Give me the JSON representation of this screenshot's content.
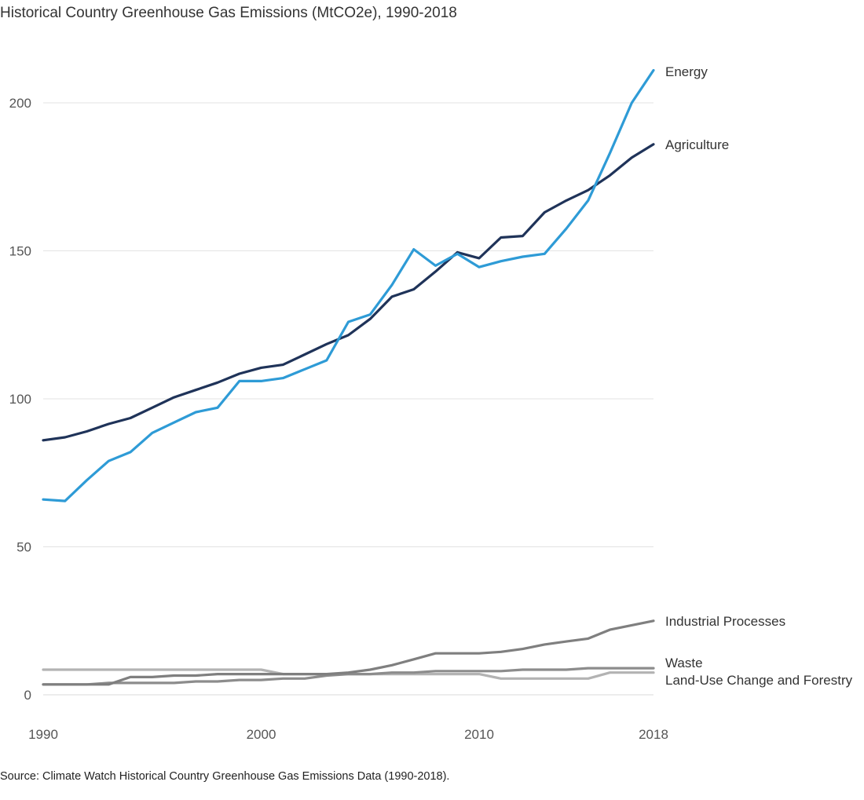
{
  "title": "Historical Country Greenhouse Gas Emissions (MtCO2e), 1990-2018",
  "source": "Source: Climate Watch Historical Country Greenhouse Gas Emissions Data (1990-2018).",
  "chart_data": {
    "type": "line",
    "title": "Historical Country Greenhouse Gas Emissions (MtCO2e), 1990-2018",
    "xlabel": "",
    "ylabel": "",
    "xlim": [
      1990,
      2018
    ],
    "ylim": [
      0,
      215
    ],
    "x_ticks": [
      1990,
      2000,
      2010,
      2018
    ],
    "y_ticks": [
      0,
      50,
      100,
      150,
      200
    ],
    "grid": "horizontal",
    "legend": "direct labels at right end of lines",
    "x": [
      1990,
      1991,
      1992,
      1993,
      1994,
      1995,
      1996,
      1997,
      1998,
      1999,
      2000,
      2001,
      2002,
      2003,
      2004,
      2005,
      2006,
      2007,
      2008,
      2009,
      2010,
      2011,
      2012,
      2013,
      2014,
      2015,
      2016,
      2017,
      2018
    ],
    "series": [
      {
        "name": "Energy",
        "color": "#2e9bd6",
        "values": [
          66,
          65.5,
          72.5,
          79,
          82,
          88.5,
          92,
          95.5,
          97,
          106,
          106,
          107,
          110,
          113,
          126,
          128.5,
          138.5,
          150.5,
          145,
          149,
          144.5,
          146.5,
          148,
          149,
          157.5,
          167,
          183,
          200,
          211
        ]
      },
      {
        "name": "Agriculture",
        "color": "#1f3359",
        "values": [
          86,
          87,
          89,
          91.5,
          93.5,
          97,
          100.5,
          103,
          105.5,
          108.5,
          110.5,
          111.5,
          115,
          118.5,
          121.5,
          127,
          134.5,
          137,
          143,
          149.5,
          147.5,
          154.5,
          155,
          163,
          167,
          170.5,
          175.5,
          181.5,
          186
        ]
      },
      {
        "name": "Industrial Processes",
        "color": "#7f7f7f",
        "values": [
          3.5,
          3.5,
          3.5,
          3.5,
          6,
          6,
          6.5,
          6.5,
          7,
          7,
          7,
          7,
          7,
          7,
          7.5,
          8.5,
          10,
          12,
          14,
          14,
          14,
          14.5,
          15.5,
          17,
          18,
          19,
          22,
          23.5,
          25
        ]
      },
      {
        "name": "Waste",
        "color": "#8c8c8c",
        "values": [
          3.5,
          3.5,
          3.5,
          4,
          4,
          4,
          4,
          4.5,
          4.5,
          5,
          5,
          5.5,
          5.5,
          6.5,
          7,
          7,
          7.5,
          7.5,
          8,
          8,
          8,
          8,
          8.5,
          8.5,
          8.5,
          9,
          9,
          9,
          9
        ]
      },
      {
        "name": "Land-Use Change and Forestry",
        "color": "#b3b3b3",
        "values": [
          8.5,
          8.5,
          8.5,
          8.5,
          8.5,
          8.5,
          8.5,
          8.5,
          8.5,
          8.5,
          8.5,
          7,
          7,
          7,
          7,
          7,
          7,
          7,
          7,
          7,
          7,
          5.5,
          5.5,
          5.5,
          5.5,
          5.5,
          7.5,
          7.5,
          7.5
        ]
      }
    ]
  }
}
